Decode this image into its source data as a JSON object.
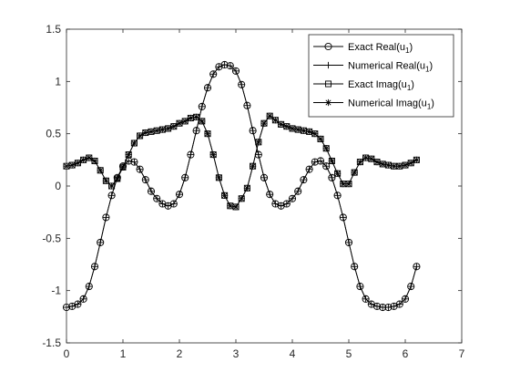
{
  "chart_data": {
    "type": "line",
    "title": "",
    "xlabel": "",
    "ylabel": "",
    "xlim": [
      0,
      7
    ],
    "ylim": [
      -1.5,
      1.5
    ],
    "xticks": [
      0,
      1,
      2,
      3,
      4,
      5,
      6,
      7
    ],
    "yticks": [
      -1.5,
      -1,
      -0.5,
      0,
      0.5,
      1,
      1.5
    ],
    "xtick_labels": [
      "0",
      "1",
      "2",
      "3",
      "4",
      "5",
      "6",
      "7"
    ],
    "ytick_labels": [
      "-1.5",
      "-1",
      "-0.5",
      "0",
      "0.5",
      "1",
      "1.5"
    ],
    "grid": false,
    "legend_position": "top-right",
    "line_color": "#000000",
    "series": [
      {
        "name": "Exact Real(u1)",
        "marker": "circle",
        "x": [
          0.0,
          0.1,
          0.2,
          0.3,
          0.4,
          0.5,
          0.6,
          0.7,
          0.8,
          0.9,
          1.0,
          1.1,
          1.2,
          1.3,
          1.4,
          1.5,
          1.6,
          1.7,
          1.8,
          1.9,
          2.0,
          2.1,
          2.2,
          2.3,
          2.4,
          2.5,
          2.6,
          2.7,
          2.8,
          2.9,
          3.0,
          3.1,
          3.2,
          3.3,
          3.4,
          3.5,
          3.6,
          3.7,
          3.8,
          3.9,
          4.0,
          4.1,
          4.2,
          4.3,
          4.4,
          4.5,
          4.6,
          4.7,
          4.8,
          4.9,
          5.0,
          5.1,
          5.2,
          5.3,
          5.4,
          5.5,
          5.6,
          5.7,
          5.8,
          5.9,
          6.0,
          6.1,
          6.2
        ],
        "y": [
          -1.16,
          -1.15,
          -1.13,
          -1.08,
          -0.96,
          -0.77,
          -0.54,
          -0.3,
          -0.09,
          0.08,
          0.19,
          0.24,
          0.23,
          0.16,
          0.06,
          -0.05,
          -0.12,
          -0.17,
          -0.19,
          -0.17,
          -0.08,
          0.08,
          0.3,
          0.53,
          0.76,
          0.94,
          1.07,
          1.14,
          1.16,
          1.15,
          1.1,
          0.97,
          0.77,
          0.53,
          0.3,
          0.08,
          -0.08,
          -0.17,
          -0.19,
          -0.17,
          -0.12,
          -0.05,
          0.06,
          0.16,
          0.23,
          0.24,
          0.19,
          0.08,
          -0.09,
          -0.3,
          -0.54,
          -0.77,
          -0.96,
          -1.08,
          -1.13,
          -1.15,
          -1.16,
          -1.16,
          -1.15,
          -1.13,
          -1.08,
          -0.96,
          -0.77
        ]
      },
      {
        "name": "Numerical Real(u1)",
        "marker": "plus",
        "x": [
          0.0,
          0.1,
          0.2,
          0.3,
          0.4,
          0.5,
          0.6,
          0.7,
          0.8,
          0.9,
          1.0,
          1.1,
          1.2,
          1.3,
          1.4,
          1.5,
          1.6,
          1.7,
          1.8,
          1.9,
          2.0,
          2.1,
          2.2,
          2.3,
          2.4,
          2.5,
          2.6,
          2.7,
          2.8,
          2.9,
          3.0,
          3.1,
          3.2,
          3.3,
          3.4,
          3.5,
          3.6,
          3.7,
          3.8,
          3.9,
          4.0,
          4.1,
          4.2,
          4.3,
          4.4,
          4.5,
          4.6,
          4.7,
          4.8,
          4.9,
          5.0,
          5.1,
          5.2,
          5.3,
          5.4,
          5.5,
          5.6,
          5.7,
          5.8,
          5.9,
          6.0,
          6.1,
          6.2
        ],
        "y": [
          -1.16,
          -1.15,
          -1.13,
          -1.08,
          -0.96,
          -0.77,
          -0.54,
          -0.3,
          -0.09,
          0.08,
          0.19,
          0.24,
          0.23,
          0.16,
          0.06,
          -0.05,
          -0.12,
          -0.17,
          -0.19,
          -0.17,
          -0.08,
          0.08,
          0.3,
          0.53,
          0.76,
          0.94,
          1.07,
          1.14,
          1.16,
          1.15,
          1.1,
          0.97,
          0.77,
          0.53,
          0.3,
          0.08,
          -0.08,
          -0.17,
          -0.19,
          -0.17,
          -0.12,
          -0.05,
          0.06,
          0.16,
          0.23,
          0.24,
          0.19,
          0.08,
          -0.09,
          -0.3,
          -0.54,
          -0.77,
          -0.96,
          -1.08,
          -1.13,
          -1.15,
          -1.16,
          -1.16,
          -1.15,
          -1.13,
          -1.08,
          -0.96,
          -0.77
        ]
      },
      {
        "name": "Exact Imag(u1)",
        "marker": "square",
        "x": [
          0.0,
          0.1,
          0.2,
          0.3,
          0.4,
          0.5,
          0.6,
          0.7,
          0.8,
          0.9,
          1.0,
          1.1,
          1.2,
          1.3,
          1.4,
          1.5,
          1.6,
          1.7,
          1.8,
          1.9,
          2.0,
          2.1,
          2.2,
          2.3,
          2.4,
          2.5,
          2.6,
          2.7,
          2.8,
          2.9,
          3.0,
          3.1,
          3.2,
          3.3,
          3.4,
          3.5,
          3.6,
          3.7,
          3.8,
          3.9,
          4.0,
          4.1,
          4.2,
          4.3,
          4.4,
          4.5,
          4.6,
          4.7,
          4.8,
          4.9,
          5.0,
          5.1,
          5.2,
          5.3,
          5.4,
          5.5,
          5.6,
          5.7,
          5.8,
          5.9,
          6.0,
          6.1,
          6.2
        ],
        "y": [
          0.19,
          0.2,
          0.22,
          0.25,
          0.27,
          0.24,
          0.15,
          0.05,
          0.0,
          0.07,
          0.18,
          0.3,
          0.41,
          0.48,
          0.51,
          0.52,
          0.53,
          0.54,
          0.55,
          0.57,
          0.6,
          0.62,
          0.65,
          0.66,
          0.62,
          0.5,
          0.3,
          0.08,
          -0.09,
          -0.19,
          -0.2,
          -0.12,
          -0.02,
          0.19,
          0.42,
          0.6,
          0.67,
          0.63,
          0.59,
          0.57,
          0.55,
          0.54,
          0.53,
          0.52,
          0.5,
          0.45,
          0.36,
          0.24,
          0.12,
          0.02,
          0.02,
          0.13,
          0.23,
          0.27,
          0.26,
          0.23,
          0.21,
          0.2,
          0.19,
          0.19,
          0.2,
          0.22,
          0.25
        ]
      },
      {
        "name": "Numerical Imag(u1)",
        "marker": "asterisk",
        "x": [
          0.0,
          0.1,
          0.2,
          0.3,
          0.4,
          0.5,
          0.6,
          0.7,
          0.8,
          0.9,
          1.0,
          1.1,
          1.2,
          1.3,
          1.4,
          1.5,
          1.6,
          1.7,
          1.8,
          1.9,
          2.0,
          2.1,
          2.2,
          2.3,
          2.4,
          2.5,
          2.6,
          2.7,
          2.8,
          2.9,
          3.0,
          3.1,
          3.2,
          3.3,
          3.4,
          3.5,
          3.6,
          3.7,
          3.8,
          3.9,
          4.0,
          4.1,
          4.2,
          4.3,
          4.4,
          4.5,
          4.6,
          4.7,
          4.8,
          4.9,
          5.0,
          5.1,
          5.2,
          5.3,
          5.4,
          5.5,
          5.6,
          5.7,
          5.8,
          5.9,
          6.0,
          6.1,
          6.2
        ],
        "y": [
          0.19,
          0.2,
          0.22,
          0.25,
          0.27,
          0.24,
          0.15,
          0.05,
          0.0,
          0.07,
          0.18,
          0.3,
          0.41,
          0.48,
          0.51,
          0.52,
          0.53,
          0.54,
          0.55,
          0.57,
          0.6,
          0.62,
          0.65,
          0.66,
          0.62,
          0.5,
          0.3,
          0.08,
          -0.09,
          -0.19,
          -0.2,
          -0.12,
          -0.02,
          0.19,
          0.42,
          0.6,
          0.67,
          0.63,
          0.59,
          0.57,
          0.55,
          0.54,
          0.53,
          0.52,
          0.5,
          0.45,
          0.36,
          0.24,
          0.12,
          0.02,
          0.02,
          0.13,
          0.23,
          0.27,
          0.26,
          0.23,
          0.21,
          0.2,
          0.19,
          0.19,
          0.2,
          0.22,
          0.25
        ]
      }
    ],
    "legend": [
      {
        "text": "Exact Real(u",
        "sub": "1",
        "close": ")",
        "marker": "circle"
      },
      {
        "text": "Numerical Real(u",
        "sub": "1",
        "close": ")",
        "marker": "plus"
      },
      {
        "text": "Exact Imag(u",
        "sub": "1",
        "close": ")",
        "marker": "square"
      },
      {
        "text": "Numerical Imag(u",
        "sub": "1",
        "close": ")",
        "marker": "asterisk"
      }
    ]
  }
}
